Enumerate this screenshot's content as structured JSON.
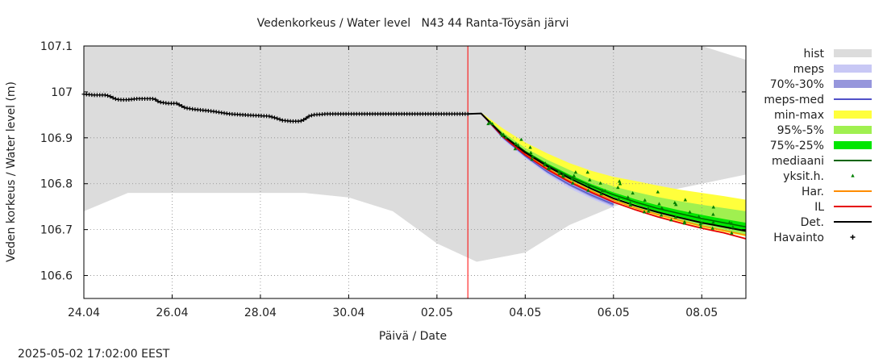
{
  "chart_data": {
    "type": "line",
    "title": "Vedenkorkeus / Water level   N43 44 Ranta-Töysän järvi",
    "xlabel": "Päivä / Date",
    "ylabel": "Veden korkeus / Water level (m)",
    "timestamp": "2025-05-02 17:02:00 EEST",
    "xlim": [
      0,
      15
    ],
    "ylim": [
      106.55,
      107.1
    ],
    "x_ticks": [
      {
        "x": 0,
        "label": "24.04"
      },
      {
        "x": 2,
        "label": "26.04"
      },
      {
        "x": 4,
        "label": "28.04"
      },
      {
        "x": 6,
        "label": "30.04"
      },
      {
        "x": 8,
        "label": "02.05"
      },
      {
        "x": 10,
        "label": "04.05"
      },
      {
        "x": 12,
        "label": "06.05"
      },
      {
        "x": 14,
        "label": "08.05"
      }
    ],
    "y_ticks": [
      {
        "y": 106.6,
        "label": "106.6"
      },
      {
        "y": 106.7,
        "label": "106.7"
      },
      {
        "y": 106.8,
        "label": "106.8"
      },
      {
        "y": 106.9,
        "label": "106.9"
      },
      {
        "y": 107.0,
        "label": "107"
      },
      {
        "y": 107.1,
        "label": "107.1"
      }
    ],
    "grid": true,
    "legend_position": "right",
    "now_x": 8.7,
    "colors": {
      "hist": "#dcdcdc",
      "meps": "#c8c8f5",
      "p70_30": "#9696dc",
      "meps_med": "#5050c8",
      "min_max": "#ffff3c",
      "p95_5": "#a0f050",
      "p75_25": "#00e600",
      "mediaani": "#006400",
      "yksit": "#008000",
      "har": "#ff8c00",
      "il": "#e60000",
      "det": "#000000",
      "havainto": "#000000",
      "now": "#ff0000"
    },
    "legend": [
      {
        "key": "hist",
        "label": "hist",
        "style": "box"
      },
      {
        "key": "meps",
        "label": "meps",
        "style": "box"
      },
      {
        "key": "p70_30",
        "label": "70%-30%",
        "style": "box"
      },
      {
        "key": "meps_med",
        "label": "meps-med",
        "style": "line"
      },
      {
        "key": "min_max",
        "label": "min-max",
        "style": "box"
      },
      {
        "key": "p95_5",
        "label": "95%-5%",
        "style": "box"
      },
      {
        "key": "p75_25",
        "label": "75%-25%",
        "style": "box"
      },
      {
        "key": "mediaani",
        "label": "mediaani",
        "style": "line"
      },
      {
        "key": "yksit",
        "label": "yksit.h.",
        "style": "triangle"
      },
      {
        "key": "har",
        "label": "Har.",
        "style": "line"
      },
      {
        "key": "il",
        "label": "IL",
        "style": "line"
      },
      {
        "key": "det",
        "label": "Det.",
        "style": "line"
      },
      {
        "key": "havainto",
        "label": "Havainto",
        "style": "plus"
      }
    ],
    "hist_band": {
      "x": [
        0,
        1,
        2,
        3,
        4,
        5,
        6,
        7,
        8,
        8.9,
        10,
        11,
        12,
        13,
        14,
        15
      ],
      "upper": [
        107.1,
        107.1,
        107.1,
        107.1,
        107.1,
        107.1,
        107.1,
        107.1,
        107.1,
        107.1,
        107.1,
        107.1,
        107.1,
        107.1,
        107.1,
        107.07
      ],
      "lower": [
        106.74,
        106.78,
        106.78,
        106.78,
        106.78,
        106.78,
        106.77,
        106.74,
        106.67,
        106.63,
        106.65,
        106.71,
        106.75,
        106.78,
        106.8,
        106.82
      ]
    },
    "observations": [
      {
        "x": 0.0,
        "y": 106.995
      },
      {
        "x": 0.25,
        "y": 106.993
      },
      {
        "x": 0.5,
        "y": 106.993
      },
      {
        "x": 0.6,
        "y": 106.99
      },
      {
        "x": 0.7,
        "y": 106.985
      },
      {
        "x": 0.8,
        "y": 106.983
      },
      {
        "x": 1.0,
        "y": 106.983
      },
      {
        "x": 1.2,
        "y": 106.985
      },
      {
        "x": 1.4,
        "y": 106.985
      },
      {
        "x": 1.6,
        "y": 106.985
      },
      {
        "x": 1.7,
        "y": 106.978
      },
      {
        "x": 1.9,
        "y": 106.975
      },
      {
        "x": 2.1,
        "y": 106.975
      },
      {
        "x": 2.2,
        "y": 106.97
      },
      {
        "x": 2.3,
        "y": 106.965
      },
      {
        "x": 2.5,
        "y": 106.962
      },
      {
        "x": 2.7,
        "y": 106.96
      },
      {
        "x": 2.9,
        "y": 106.958
      },
      {
        "x": 3.1,
        "y": 106.955
      },
      {
        "x": 3.3,
        "y": 106.952
      },
      {
        "x": 3.6,
        "y": 106.95
      },
      {
        "x": 4.0,
        "y": 106.948
      },
      {
        "x": 4.2,
        "y": 106.947
      },
      {
        "x": 4.35,
        "y": 106.943
      },
      {
        "x": 4.5,
        "y": 106.938
      },
      {
        "x": 4.7,
        "y": 106.936
      },
      {
        "x": 4.9,
        "y": 106.936
      },
      {
        "x": 5.0,
        "y": 106.94
      },
      {
        "x": 5.1,
        "y": 106.947
      },
      {
        "x": 5.2,
        "y": 106.95
      },
      {
        "x": 5.5,
        "y": 106.952
      },
      {
        "x": 6.0,
        "y": 106.952
      },
      {
        "x": 6.5,
        "y": 106.952
      },
      {
        "x": 7.0,
        "y": 106.952
      },
      {
        "x": 7.5,
        "y": 106.952
      },
      {
        "x": 8.0,
        "y": 106.952
      },
      {
        "x": 8.5,
        "y": 106.952
      },
      {
        "x": 8.7,
        "y": 106.952
      }
    ],
    "det_forecast": {
      "x": [
        8.7,
        9.0,
        9.5,
        10.0,
        10.5,
        11.0,
        11.5,
        12.0,
        12.5,
        13.0,
        13.5,
        14.0,
        14.5,
        15.0
      ],
      "y": [
        106.952,
        106.953,
        106.905,
        106.868,
        106.838,
        106.812,
        106.789,
        106.768,
        106.752,
        106.738,
        106.726,
        106.715,
        106.706,
        106.697
      ]
    },
    "il_forecast": {
      "x": [
        9.0,
        9.5,
        10.0,
        10.5,
        11.0,
        11.5,
        12.0,
        12.5,
        13.0,
        13.5,
        14.0,
        14.5,
        15.0
      ],
      "y": [
        106.953,
        106.902,
        106.863,
        106.831,
        106.804,
        106.781,
        106.76,
        106.743,
        106.728,
        106.715,
        106.703,
        106.693,
        106.68
      ]
    },
    "har_forecast": {
      "x": [
        9.0,
        9.5,
        10.0,
        10.5,
        11.0,
        11.5,
        12.0,
        12.5,
        13.0,
        13.5,
        14.0,
        14.5,
        15.0
      ],
      "y": [
        106.953,
        106.903,
        106.865,
        106.834,
        106.807,
        106.784,
        106.764,
        106.747,
        106.733,
        106.72,
        106.708,
        106.698,
        106.688
      ]
    },
    "meps_med_forecast": {
      "x": [
        9.0,
        9.5,
        10.0,
        10.5,
        11.0,
        11.5,
        12.0
      ],
      "y": [
        106.953,
        106.9,
        106.86,
        106.826,
        106.798,
        106.775,
        106.755
      ]
    },
    "meps_band": {
      "x": [
        9.0,
        9.5,
        10.0,
        10.5,
        11.0,
        11.5,
        12.0
      ],
      "upper": [
        106.955,
        106.905,
        106.868,
        106.836,
        106.808,
        106.784,
        106.764
      ],
      "lower": [
        106.95,
        106.895,
        106.855,
        106.82,
        106.79,
        106.767,
        106.748
      ]
    },
    "p70_30_band": {
      "x": [
        9.0,
        9.5,
        10.0,
        10.5,
        11.0,
        11.5,
        12.0
      ],
      "upper": [
        106.954,
        106.903,
        106.864,
        106.831,
        106.803,
        106.779,
        106.759
      ],
      "lower": [
        106.951,
        106.898,
        106.858,
        106.823,
        106.795,
        106.771,
        106.751
      ]
    },
    "min_max_band": {
      "x": [
        9.0,
        9.5,
        10.0,
        10.5,
        11.0,
        11.5,
        12.0,
        12.5,
        13.0,
        13.5,
        14.0,
        14.5,
        15.0
      ],
      "upper": [
        106.955,
        106.92,
        106.89,
        106.866,
        106.845,
        106.828,
        106.815,
        106.806,
        106.796,
        106.787,
        106.78,
        106.773,
        106.765
      ],
      "lower": [
        106.95,
        106.9,
        106.862,
        106.83,
        106.805,
        106.782,
        106.762,
        106.745,
        106.73,
        106.717,
        106.705,
        106.695,
        106.685
      ]
    },
    "p95_5_band": {
      "x": [
        9.0,
        9.5,
        10.0,
        10.5,
        11.0,
        11.5,
        12.0,
        12.5,
        13.0,
        13.5,
        14.0,
        14.5,
        15.0
      ],
      "upper": [
        106.954,
        106.912,
        106.878,
        106.852,
        106.83,
        106.81,
        106.794,
        106.782,
        106.771,
        106.762,
        106.754,
        106.747,
        106.74
      ],
      "lower": [
        106.951,
        106.902,
        106.866,
        106.834,
        106.809,
        106.786,
        106.766,
        106.749,
        106.734,
        106.721,
        106.709,
        106.699,
        106.689
      ]
    },
    "p75_25_band": {
      "x": [
        9.0,
        9.5,
        10.0,
        10.5,
        11.0,
        11.5,
        12.0,
        12.5,
        13.0,
        13.5,
        14.0,
        14.5,
        15.0
      ],
      "upper": [
        106.953,
        106.908,
        106.872,
        106.844,
        106.82,
        106.799,
        106.781,
        106.766,
        106.753,
        106.742,
        106.732,
        106.723,
        106.715
      ],
      "lower": [
        106.952,
        106.904,
        106.868,
        106.838,
        106.813,
        106.791,
        106.771,
        106.755,
        106.74,
        106.728,
        106.717,
        106.707,
        106.698
      ]
    },
    "mediaani_forecast": {
      "x": [
        9.0,
        9.5,
        10.0,
        10.5,
        11.0,
        11.5,
        12.0,
        12.5,
        13.0,
        13.5,
        14.0,
        14.5,
        15.0
      ],
      "y": [
        106.953,
        106.906,
        106.87,
        106.841,
        106.816,
        106.795,
        106.776,
        106.76,
        106.746,
        106.735,
        106.724,
        106.715,
        106.706
      ]
    }
  }
}
